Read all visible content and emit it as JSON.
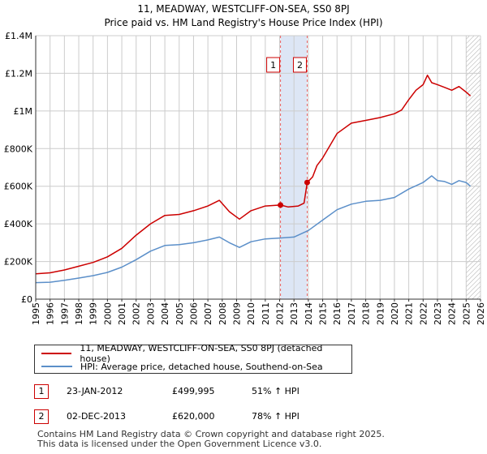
{
  "title": {
    "line1": "11, MEADWAY, WESTCLIFF-ON-SEA, SS0 8PJ",
    "line2": "Price paid vs. HM Land Registry's House Price Index (HPI)"
  },
  "colors": {
    "property": "#cc0000",
    "hpi": "#5b8fc9",
    "shade": "#dde6f5",
    "grid": "#cccccc",
    "marker_line": "#ee6666"
  },
  "chart_data": {
    "type": "line",
    "x_range": [
      1995,
      2026
    ],
    "ylim": [
      0,
      1400000
    ],
    "y_ticks": [
      {
        "value": 0,
        "label": "£0"
      },
      {
        "value": 200000,
        "label": "£200K"
      },
      {
        "value": 400000,
        "label": "£400K"
      },
      {
        "value": 600000,
        "label": "£600K"
      },
      {
        "value": 800000,
        "label": "£800K"
      },
      {
        "value": 1000000,
        "label": "£1M"
      },
      {
        "value": 1200000,
        "label": "£1.2M"
      },
      {
        "value": 1400000,
        "label": "£1.4M"
      }
    ],
    "x_ticks": [
      "1995",
      "1996",
      "1997",
      "1998",
      "1999",
      "2000",
      "2001",
      "2002",
      "2003",
      "2004",
      "2005",
      "2006",
      "2007",
      "2008",
      "2009",
      "2010",
      "2011",
      "2012",
      "2013",
      "2014",
      "2015",
      "2016",
      "2017",
      "2018",
      "2019",
      "2020",
      "2021",
      "2022",
      "2023",
      "2024",
      "2025",
      "2026"
    ],
    "highlight_period": [
      2012.06,
      2013.92
    ],
    "hatched_from": 2025.0,
    "series": [
      {
        "name": "11, MEADWAY, WESTCLIFF-ON-SEA, SS0 8PJ (detached house)",
        "color": "#cc0000",
        "x": [
          1995,
          1996,
          1997,
          1998,
          1999,
          2000,
          2001,
          2002,
          2003,
          2004,
          2005,
          2006,
          2007,
          2007.8,
          2008.5,
          2009.2,
          2010,
          2011,
          2012.06,
          2012.6,
          2013.3,
          2013.7,
          2013.92,
          2014.3,
          2014.6,
          2015,
          2016,
          2017,
          2018,
          2019,
          2020,
          2020.5,
          2021,
          2021.5,
          2022,
          2022.3,
          2022.6,
          2023,
          2023.5,
          2024,
          2024.5,
          2025,
          2025.3
        ],
        "values": [
          135000,
          140000,
          155000,
          175000,
          195000,
          225000,
          270000,
          340000,
          400000,
          445000,
          450000,
          470000,
          495000,
          525000,
          465000,
          425000,
          470000,
          495000,
          499995,
          490000,
          495000,
          510000,
          620000,
          650000,
          710000,
          750000,
          880000,
          935000,
          950000,
          965000,
          985000,
          1005000,
          1060000,
          1110000,
          1140000,
          1190000,
          1150000,
          1140000,
          1125000,
          1110000,
          1130000,
          1100000,
          1080000
        ]
      },
      {
        "name": "HPI: Average price, detached house, Southend-on-Sea",
        "color": "#5b8fc9",
        "x": [
          1995,
          1996,
          1997,
          1998,
          1999,
          2000,
          2001,
          2002,
          2003,
          2004,
          2005,
          2006,
          2007,
          2007.8,
          2008.5,
          2009.2,
          2010,
          2011,
          2012,
          2013,
          2014,
          2015,
          2016,
          2017,
          2018,
          2019,
          2020,
          2021,
          2022,
          2022.6,
          2023,
          2023.5,
          2024,
          2024.5,
          2025,
          2025.3
        ],
        "values": [
          88000,
          90000,
          100000,
          112000,
          125000,
          142000,
          170000,
          210000,
          255000,
          285000,
          290000,
          300000,
          315000,
          330000,
          300000,
          275000,
          305000,
          320000,
          325000,
          330000,
          365000,
          420000,
          475000,
          505000,
          520000,
          525000,
          540000,
          585000,
          620000,
          655000,
          630000,
          625000,
          610000,
          630000,
          620000,
          600000
        ]
      }
    ],
    "markers": [
      {
        "label": "1",
        "x": 2012.06,
        "value": 499995
      },
      {
        "label": "2",
        "x": 2013.92,
        "value": 620000
      }
    ]
  },
  "legend": {
    "property_label": "11, MEADWAY, WESTCLIFF-ON-SEA, SS0 8PJ (detached house)",
    "hpi_label": "HPI: Average price, detached house, Southend-on-Sea"
  },
  "transactions": [
    {
      "num": "1",
      "date": "23-JAN-2012",
      "price": "£499,995",
      "hpi": "51% ↑ HPI"
    },
    {
      "num": "2",
      "date": "02-DEC-2013",
      "price": "£620,000",
      "hpi": "78% ↑ HPI"
    }
  ],
  "footer": {
    "line1": "Contains HM Land Registry data © Crown copyright and database right 2025.",
    "line2": "This data is licensed under the Open Government Licence v3.0."
  }
}
